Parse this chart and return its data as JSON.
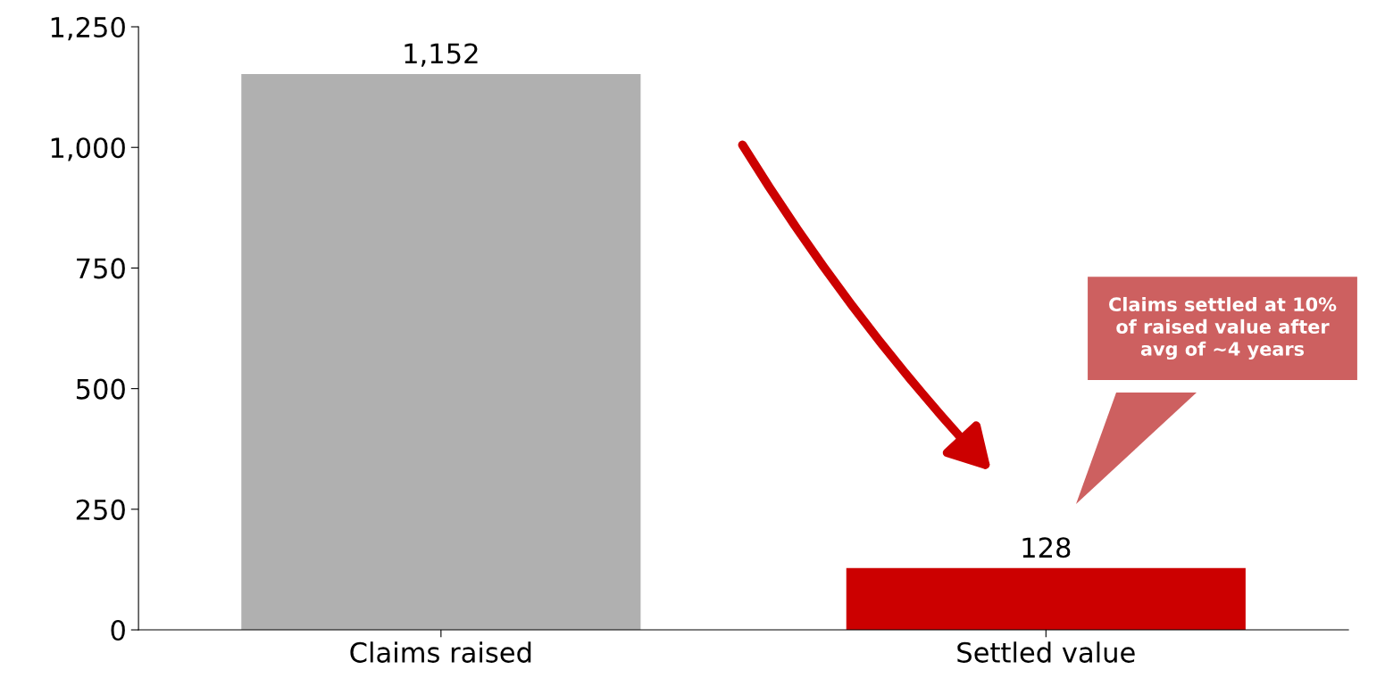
{
  "chart_data": {
    "type": "bar",
    "categories": [
      "Claims raised",
      "Settled value"
    ],
    "values": [
      1152,
      128
    ],
    "colors": [
      "#b0b0b0",
      "#cc0000"
    ],
    "ylim": [
      0,
      1250
    ],
    "yticks": [
      0,
      250,
      500,
      750,
      {
        "value": 1000,
        "label": "1,000"
      },
      {
        "value": 1250,
        "label": "1,250"
      }
    ],
    "value_labels": [
      "1,152",
      "128"
    ],
    "grid": false,
    "annotations": [
      "Claims settled at 10%\nof raised value after\navg of ~4 years"
    ]
  }
}
